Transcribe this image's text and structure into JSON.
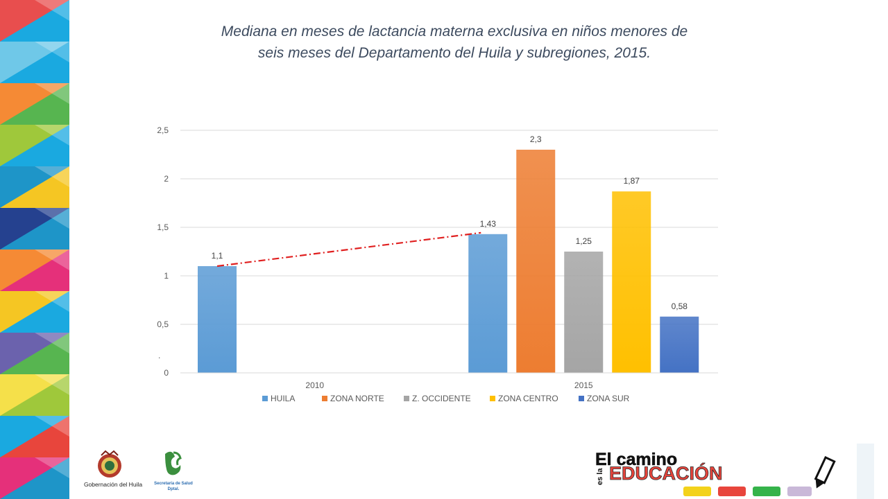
{
  "title_lines": [
    "Mediana en meses de lactancia materna exclusiva en niños menores de",
    "seis meses del Departamento del Huila y subregiones, 2015."
  ],
  "chart_data": {
    "type": "bar",
    "categories": [
      "2010",
      "2015"
    ],
    "series": [
      {
        "name": "HUILA",
        "color": "#5b9bd5",
        "values": [
          1.1,
          1.43
        ]
      },
      {
        "name": "ZONA NORTE",
        "color": "#ed7d31",
        "values": [
          null,
          2.3
        ]
      },
      {
        "name": "Z. OCCIDENTE",
        "color": "#a5a5a5",
        "values": [
          null,
          1.25
        ]
      },
      {
        "name": "ZONA CENTRO",
        "color": "#ffc000",
        "values": [
          null,
          1.87
        ]
      },
      {
        "name": "ZONA SUR",
        "color": "#4472c4",
        "values": [
          null,
          0.58
        ]
      }
    ],
    "data_labels": [
      {
        "series": 0,
        "category": 0,
        "text": "1,1"
      },
      {
        "series": 0,
        "category": 1,
        "text": "1,43"
      },
      {
        "series": 1,
        "category": 1,
        "text": "2,3"
      },
      {
        "series": 2,
        "category": 1,
        "text": "1,25"
      },
      {
        "series": 3,
        "category": 1,
        "text": "1,87"
      },
      {
        "series": 4,
        "category": 1,
        "text": "0,58"
      }
    ],
    "yticks": [
      0,
      0.5,
      1,
      1.5,
      2,
      2.5
    ],
    "ytick_labels": [
      "0",
      "0,5",
      "1",
      "1,5",
      "2",
      "2,5"
    ],
    "ylim": [
      0,
      2.5
    ],
    "grid": true,
    "legend": "bottom",
    "trendline": {
      "from": [
        0,
        0,
        1.1
      ],
      "to": [
        1,
        0,
        1.43
      ],
      "color": "#e02020",
      "style": "dash-dot"
    },
    "stray_mark": "."
  },
  "footer": {
    "gov_label": "Gobernación del Huila",
    "health_label_1": "Secretaría de Salud",
    "health_label_2": "Dptal.",
    "slogan_1": "El camino",
    "slogan_2": "es la",
    "slogan_3": "EDUCACIÓN"
  }
}
